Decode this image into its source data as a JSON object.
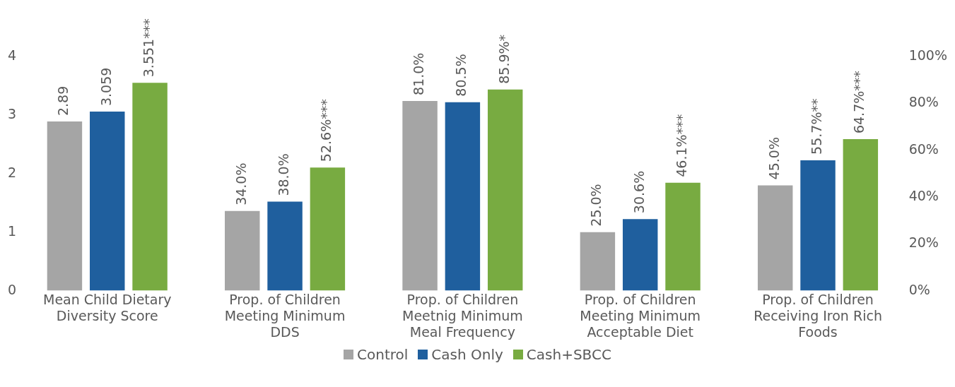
{
  "chart_data": {
    "type": "bar",
    "categories": [
      "Mean Child Dietary Diversity Score",
      "Prop. of Children Meeting Minimum DDS",
      "Prop. of Children Meetnig Minimum Meal Frequency",
      "Prop. of Children Meeting Minimum Acceptable Diet",
      "Prop. of Children Receiving Iron Rich Foods"
    ],
    "ylim": [
      0,
      4
    ],
    "yticks": [
      0,
      1,
      2,
      3,
      4
    ],
    "y2lim": [
      0,
      100
    ],
    "y2ticks": [
      {
        "value": 0,
        "label": "0%"
      },
      {
        "value": 20,
        "label": "20%"
      },
      {
        "value": 40,
        "label": "40%"
      },
      {
        "value": 60,
        "label": "60%"
      },
      {
        "value": 80,
        "label": "80%"
      },
      {
        "value": 100,
        "label": "100%"
      }
    ],
    "grid": false,
    "legend": "bottom",
    "series": [
      {
        "name": "Control",
        "color": "#a5a5a5",
        "values": [
          2.89,
          null,
          null,
          null,
          null
        ],
        "value_labels": [
          "2.89",
          null,
          null,
          null,
          null
        ]
      },
      {
        "name": "Cash Only",
        "color": "#1f5f9e",
        "values": [
          3.059,
          null,
          null,
          null,
          null
        ],
        "value_labels": [
          "3.059",
          null,
          null,
          null,
          null
        ]
      },
      {
        "name": "Cash+SBCC",
        "color": "#78ab41",
        "values": [
          3.551,
          null,
          null,
          null,
          null
        ],
        "value_labels": [
          "3.551***",
          null,
          null,
          null,
          null
        ]
      },
      {
        "color": "#a5a5a5",
        "axis": "y2",
        "values": [
          null,
          34.0,
          81.0,
          25.0,
          45.0
        ],
        "value_labels": [
          null,
          "34.0%",
          "81.0%",
          "25.0%",
          "45.0%"
        ]
      },
      {
        "color": "#1f5f9e",
        "axis": "y2",
        "values": [
          null,
          38.0,
          80.5,
          30.6,
          55.7
        ],
        "value_labels": [
          null,
          "38.0%",
          "80.5%",
          "30.6%",
          "55.7%**"
        ]
      },
      {
        "color": "#78ab41",
        "axis": "y2",
        "values": [
          null,
          52.6,
          85.9,
          46.1,
          64.7
        ],
        "value_labels": [
          null,
          "52.6%***",
          "85.9%*",
          "46.1%***",
          "64.7%***"
        ]
      }
    ]
  }
}
